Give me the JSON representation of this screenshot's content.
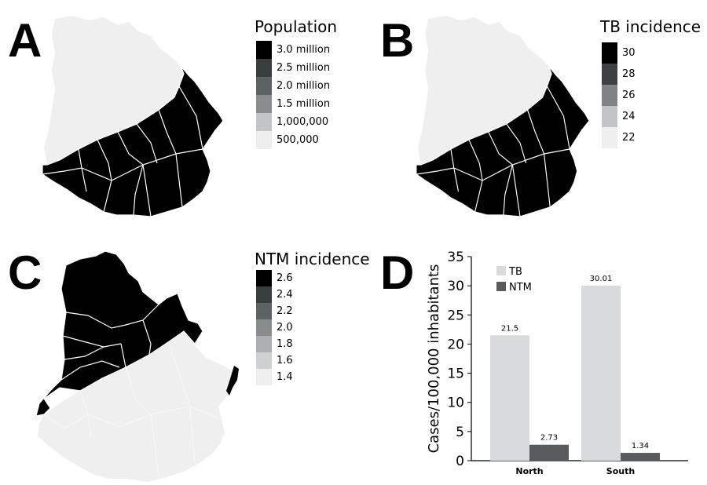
{
  "panels": {
    "a": {
      "letter": "A",
      "legend_title": "Population",
      "legend": [
        {
          "label": "3.0 million",
          "color": "#000000"
        },
        {
          "label": "2.5 million",
          "color": "#3a3d3e"
        },
        {
          "label": "2.0 million",
          "color": "#5f6263"
        },
        {
          "label": "1.5 million",
          "color": "#8a8c8d"
        },
        {
          "label": "1,000,000",
          "color": "#c3c4c5"
        },
        {
          "label": "500,000",
          "color": "#eeeeee"
        }
      ],
      "highlighted_region": "South",
      "highlight_color": "#000000",
      "base_color": "#efefef"
    },
    "b": {
      "letter": "B",
      "legend_title": "TB incidence",
      "legend": [
        {
          "label": "30",
          "color": "#000000"
        },
        {
          "label": "28",
          "color": "#3d4142"
        },
        {
          "label": "26",
          "color": "#808283"
        },
        {
          "label": "24",
          "color": "#c3c4c5"
        },
        {
          "label": "22",
          "color": "#efefef"
        }
      ],
      "highlighted_region": "South",
      "highlight_color": "#000000",
      "base_color": "#efefef"
    },
    "c": {
      "letter": "C",
      "legend_title": "NTM incidence",
      "legend": [
        {
          "label": "2.6",
          "color": "#000000"
        },
        {
          "label": "2.4",
          "color": "#3a3d3e"
        },
        {
          "label": "2.2",
          "color": "#5f6263"
        },
        {
          "label": "2.0",
          "color": "#898b8c"
        },
        {
          "label": "1.8",
          "color": "#acaeaf"
        },
        {
          "label": "1.6",
          "color": "#cfd0d1"
        },
        {
          "label": "1.4",
          "color": "#efefef"
        }
      ],
      "highlighted_region": "North",
      "highlight_color": "#000000",
      "base_color": "#efefef"
    },
    "d": {
      "letter": "D"
    }
  },
  "chart_data": {
    "type": "bar",
    "categories": [
      "North",
      "South"
    ],
    "series": [
      {
        "name": "TB",
        "values": [
          21.5,
          30.01
        ],
        "labels": [
          "21.5",
          "30.01"
        ],
        "color": "#d9dadb"
      },
      {
        "name": "NTM",
        "values": [
          2.73,
          1.34
        ],
        "labels": [
          "2.73",
          "1.34"
        ],
        "color": "#595a5b"
      }
    ],
    "ylabel": "Cases/100,000 inhabitants",
    "xlabel": "",
    "ylim": [
      0,
      35
    ],
    "yticks": [
      "0",
      "5",
      "10",
      "15",
      "20",
      "25",
      "30",
      "35"
    ],
    "grid": false,
    "legend_position": "top-left"
  }
}
